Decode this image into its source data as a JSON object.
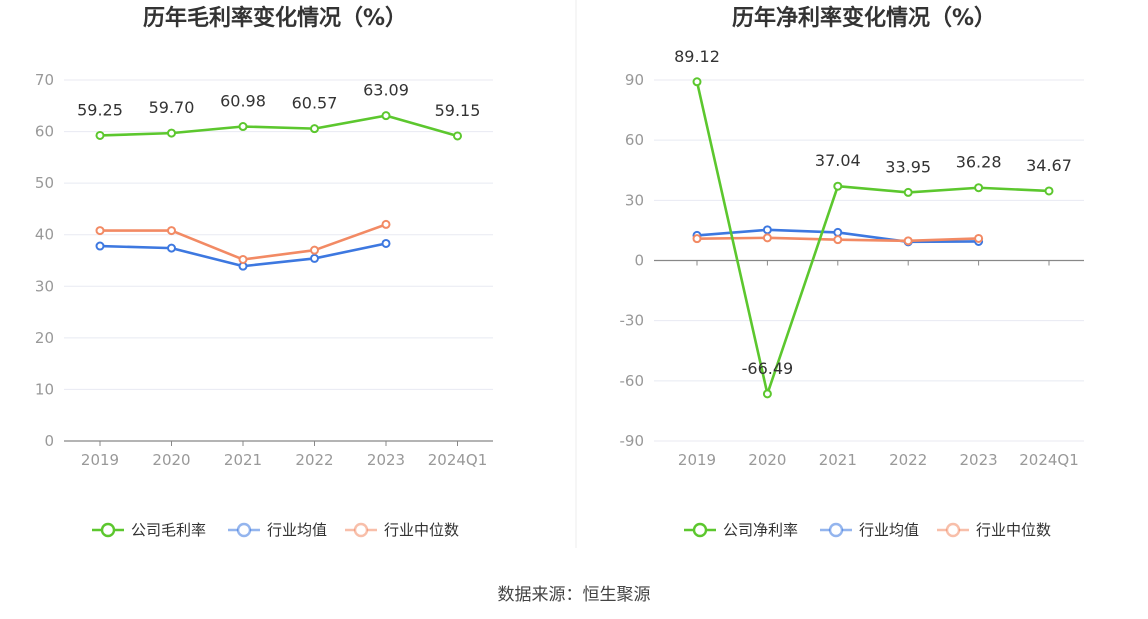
{
  "source": "数据来源：恒生聚源",
  "colors": {
    "company": "#5cc72e",
    "avg": "#3d78e0",
    "median": "#f28a64",
    "grid": "#e8eaf2",
    "axis": "#888888",
    "divider": "#eeeeee"
  },
  "chart_data": [
    {
      "type": "line",
      "title": "历年毛利率变化情况（%）",
      "categories": [
        "2019",
        "2020",
        "2021",
        "2022",
        "2023",
        "2024Q1"
      ],
      "ylim": [
        0,
        70
      ],
      "yticks": [
        0,
        10,
        20,
        30,
        40,
        50,
        60,
        70
      ],
      "series": [
        {
          "name": "公司毛利率",
          "key": "company",
          "values": [
            59.25,
            59.7,
            60.98,
            60.57,
            63.09,
            59.15
          ],
          "labels": [
            "59.25",
            "59.70",
            "60.98",
            "60.57",
            "63.09",
            "59.15"
          ]
        },
        {
          "name": "行业均值",
          "key": "avg",
          "values": [
            37.8,
            37.4,
            33.9,
            35.4,
            38.3,
            null
          ]
        },
        {
          "name": "行业中位数",
          "key": "median",
          "values": [
            40.8,
            40.8,
            35.2,
            37.0,
            42.0,
            null
          ]
        }
      ]
    },
    {
      "type": "line",
      "title": "历年净利率变化情况（%）",
      "categories": [
        "2019",
        "2020",
        "2021",
        "2022",
        "2023",
        "2024Q1"
      ],
      "ylim": [
        -90,
        90
      ],
      "yticks": [
        -90,
        -60,
        -30,
        0,
        30,
        60,
        90
      ],
      "series": [
        {
          "name": "公司净利率",
          "key": "company",
          "values": [
            89.12,
            -66.49,
            37.04,
            33.95,
            36.28,
            34.67
          ],
          "labels": [
            "89.12",
            "-66.49",
            "37.04",
            "33.95",
            "36.28",
            "34.67"
          ]
        },
        {
          "name": "行业均值",
          "key": "avg",
          "values": [
            12.5,
            15.3,
            14.0,
            9.3,
            9.5,
            null
          ]
        },
        {
          "name": "行业中位数",
          "key": "median",
          "values": [
            10.9,
            11.3,
            10.4,
            9.8,
            11.0,
            null
          ]
        }
      ]
    }
  ]
}
